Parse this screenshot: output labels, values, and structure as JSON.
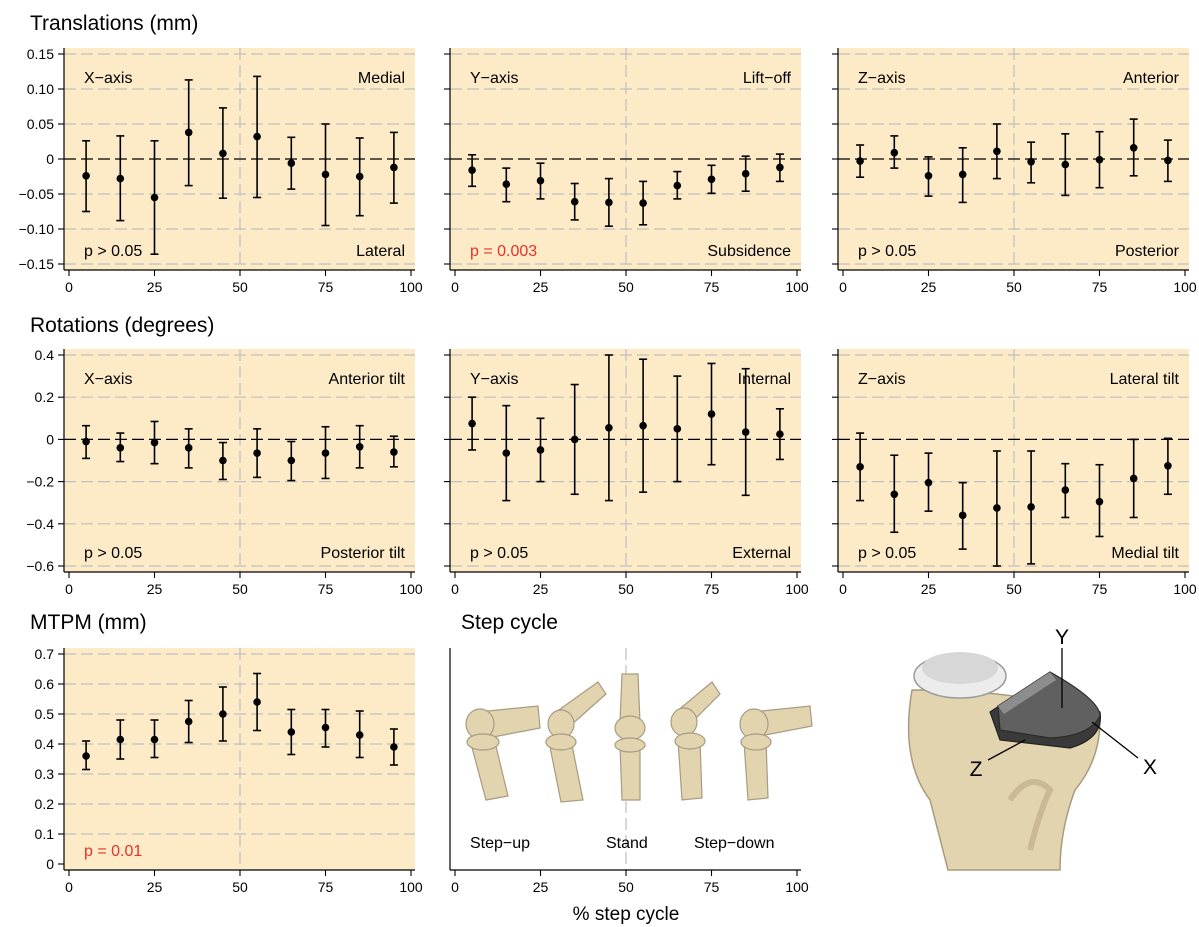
{
  "figure": {
    "section_titles": {
      "translations": "Translations (mm)",
      "rotations": "Rotations (degrees)",
      "mtpm": "MTPM (mm)",
      "step_cycle": "Step cycle"
    },
    "shared_xlabel": "% step cycle",
    "colors": {
      "panel_bg": "#fdebc8",
      "grid": "#bfbfbf",
      "point": "#000000",
      "significant_p": "#e8312a",
      "bone": "#e3d4b0",
      "bone_outline": "#a79c80",
      "implant_dark": "#606060",
      "implant_light": "#ececec"
    },
    "step_cycle_labels": [
      "Step−up",
      "Stand",
      "Step−down"
    ],
    "axis_letters": [
      "Y",
      "Z",
      "X"
    ],
    "icons": [
      "knee-step-up-icon",
      "knee-bent-icon",
      "knee-stand-icon",
      "knee-bent-down-icon",
      "knee-step-down-icon",
      "tibial-implant-axes-icon"
    ]
  },
  "chart_data": [
    {
      "id": "trans_x",
      "type": "scatter",
      "title": "X−axis",
      "xlim": [
        0,
        100
      ],
      "ylim": [
        -0.15,
        0.15
      ],
      "yticks": [
        -0.15,
        -0.1,
        -0.05,
        0,
        0.05,
        0.1,
        0.15
      ],
      "ytick_labels": [
        "−0.15",
        "−0.10",
        "−0.05",
        "0",
        "0.05",
        "0.10",
        "0.15"
      ],
      "xticks": [
        0,
        25,
        50,
        75,
        100
      ],
      "xtick_labels": [
        "0",
        "25",
        "50",
        "75",
        "100"
      ],
      "top_right_label": "Medial",
      "bottom_right_label": "Lateral",
      "p_label": "p > 0.05",
      "p_significant": false,
      "x": [
        5,
        15,
        25,
        35,
        45,
        55,
        65,
        75,
        85,
        95
      ],
      "y": [
        -0.024,
        -0.028,
        -0.055,
        0.038,
        0.008,
        0.032,
        -0.006,
        -0.022,
        -0.025,
        -0.012
      ],
      "lower": [
        -0.075,
        -0.088,
        -0.136,
        -0.038,
        -0.056,
        -0.055,
        -0.043,
        -0.095,
        -0.081,
        -0.063
      ],
      "upper": [
        0.026,
        0.033,
        0.026,
        0.113,
        0.073,
        0.118,
        0.031,
        0.05,
        0.03,
        0.038
      ]
    },
    {
      "id": "trans_y",
      "type": "scatter",
      "title": "Y−axis",
      "xlim": [
        0,
        100
      ],
      "ylim": [
        -0.15,
        0.15
      ],
      "yticks": [
        -0.15,
        -0.1,
        -0.05,
        0,
        0.05,
        0.1,
        0.15
      ],
      "ytick_labels": [],
      "xticks": [
        0,
        25,
        50,
        75,
        100
      ],
      "xtick_labels": [
        "0",
        "25",
        "50",
        "75",
        "100"
      ],
      "top_right_label": "Lift−off",
      "bottom_right_label": "Subsidence",
      "p_label": "p = 0.003",
      "p_significant": true,
      "x": [
        5,
        15,
        25,
        35,
        45,
        55,
        65,
        75,
        85,
        95
      ],
      "y": [
        -0.016,
        -0.036,
        -0.031,
        -0.061,
        -0.062,
        -0.063,
        -0.038,
        -0.029,
        -0.021,
        -0.012
      ],
      "lower": [
        -0.039,
        -0.061,
        -0.057,
        -0.087,
        -0.096,
        -0.094,
        -0.057,
        -0.049,
        -0.046,
        -0.032
      ],
      "upper": [
        0.006,
        -0.013,
        -0.006,
        -0.035,
        -0.028,
        -0.032,
        -0.018,
        -0.009,
        0.004,
        0.007
      ]
    },
    {
      "id": "trans_z",
      "type": "scatter",
      "title": "Z−axis",
      "xlim": [
        0,
        100
      ],
      "ylim": [
        -0.15,
        0.15
      ],
      "yticks": [
        -0.15,
        -0.1,
        -0.05,
        0,
        0.05,
        0.1,
        0.15
      ],
      "ytick_labels": [],
      "xticks": [
        0,
        25,
        50,
        75,
        100
      ],
      "xtick_labels": [
        "0",
        "25",
        "50",
        "75",
        "100"
      ],
      "top_right_label": "Anterior",
      "bottom_right_label": "Posterior",
      "p_label": "p > 0.05",
      "p_significant": false,
      "x": [
        5,
        15,
        25,
        35,
        45,
        55,
        65,
        75,
        85,
        95
      ],
      "y": [
        -0.003,
        0.009,
        -0.024,
        -0.022,
        0.011,
        -0.004,
        -0.008,
        -0.001,
        0.016,
        -0.002
      ],
      "lower": [
        -0.026,
        -0.013,
        -0.053,
        -0.062,
        -0.028,
        -0.034,
        -0.052,
        -0.041,
        -0.024,
        -0.032
      ],
      "upper": [
        0.02,
        0.033,
        0.003,
        0.016,
        0.05,
        0.024,
        0.036,
        0.039,
        0.057,
        0.027
      ]
    },
    {
      "id": "rot_x",
      "type": "scatter",
      "title": "X−axis",
      "xlim": [
        0,
        100
      ],
      "ylim": [
        -0.6,
        0.4
      ],
      "yticks": [
        -0.6,
        -0.4,
        -0.2,
        0,
        0.2,
        0.4
      ],
      "ytick_labels": [
        "−0.6",
        "−0.4",
        "−0.2",
        "0",
        "0.2",
        "0.4"
      ],
      "xticks": [
        0,
        25,
        50,
        75,
        100
      ],
      "xtick_labels": [
        "0",
        "25",
        "50",
        "75",
        "100"
      ],
      "top_right_label": "Anterior tilt",
      "bottom_right_label": "Posterior tilt",
      "p_label": "p > 0.05",
      "p_significant": false,
      "x": [
        5,
        15,
        25,
        35,
        45,
        55,
        65,
        75,
        85,
        95
      ],
      "y": [
        -0.01,
        -0.04,
        -0.015,
        -0.04,
        -0.1,
        -0.065,
        -0.1,
        -0.065,
        -0.035,
        -0.06
      ],
      "lower": [
        -0.09,
        -0.105,
        -0.115,
        -0.135,
        -0.19,
        -0.18,
        -0.195,
        -0.185,
        -0.135,
        -0.13
      ],
      "upper": [
        0.065,
        0.03,
        0.085,
        0.05,
        -0.015,
        0.05,
        -0.01,
        0.06,
        0.065,
        0.015
      ]
    },
    {
      "id": "rot_y",
      "type": "scatter",
      "title": "Y−axis",
      "xlim": [
        0,
        100
      ],
      "ylim": [
        -0.6,
        0.4
      ],
      "yticks": [
        -0.6,
        -0.4,
        -0.2,
        0,
        0.2,
        0.4
      ],
      "ytick_labels": [],
      "xticks": [
        0,
        25,
        50,
        75,
        100
      ],
      "xtick_labels": [
        "0",
        "25",
        "50",
        "75",
        "100"
      ],
      "top_right_label": "Internal",
      "bottom_right_label": "External",
      "p_label": "p > 0.05",
      "p_significant": false,
      "x": [
        5,
        15,
        25,
        35,
        45,
        55,
        65,
        75,
        85,
        95
      ],
      "y": [
        0.075,
        -0.065,
        -0.05,
        0,
        0.055,
        0.065,
        0.05,
        0.12,
        0.035,
        0.025
      ],
      "lower": [
        -0.05,
        -0.29,
        -0.2,
        -0.26,
        -0.29,
        -0.25,
        -0.2,
        -0.12,
        -0.265,
        -0.095
      ],
      "upper": [
        0.2,
        0.16,
        0.1,
        0.26,
        0.4,
        0.38,
        0.3,
        0.36,
        0.335,
        0.145
      ]
    },
    {
      "id": "rot_z",
      "type": "scatter",
      "title": "Z−axis",
      "xlim": [
        0,
        100
      ],
      "ylim": [
        -0.6,
        0.4
      ],
      "yticks": [
        -0.6,
        -0.4,
        -0.2,
        0,
        0.2,
        0.4
      ],
      "ytick_labels": [],
      "xticks": [
        0,
        25,
        50,
        75,
        100
      ],
      "xtick_labels": [
        "0",
        "25",
        "50",
        "75",
        "100"
      ],
      "top_right_label": "Lateral tilt",
      "bottom_right_label": "Medial tilt",
      "p_label": "p > 0.05",
      "p_significant": false,
      "x": [
        5,
        15,
        25,
        35,
        45,
        55,
        65,
        75,
        85,
        95
      ],
      "y": [
        -0.13,
        -0.26,
        -0.205,
        -0.36,
        -0.325,
        -0.32,
        -0.24,
        -0.295,
        -0.185,
        -0.125
      ],
      "lower": [
        -0.29,
        -0.44,
        -0.34,
        -0.52,
        -0.6,
        -0.59,
        -0.37,
        -0.46,
        -0.37,
        -0.26
      ],
      "upper": [
        0.03,
        -0.075,
        -0.065,
        -0.205,
        -0.055,
        -0.055,
        -0.115,
        -0.12,
        0,
        0.005
      ]
    },
    {
      "id": "mtpm",
      "type": "scatter",
      "title": "",
      "xlim": [
        0,
        100
      ],
      "ylim": [
        0,
        0.7
      ],
      "yticks": [
        0,
        0.1,
        0.2,
        0.3,
        0.4,
        0.5,
        0.6,
        0.7
      ],
      "ytick_labels": [
        "0",
        "0.1",
        "0.2",
        "0.3",
        "0.4",
        "0.5",
        "0.6",
        "0.7"
      ],
      "xticks": [
        0,
        25,
        50,
        75,
        100
      ],
      "xtick_labels": [
        "0",
        "25",
        "50",
        "75",
        "100"
      ],
      "top_right_label": "",
      "bottom_right_label": "",
      "p_label": "p = 0.01",
      "p_significant": true,
      "x": [
        5,
        15,
        25,
        35,
        45,
        55,
        65,
        75,
        85,
        95
      ],
      "y": [
        0.36,
        0.415,
        0.415,
        0.475,
        0.5,
        0.54,
        0.44,
        0.455,
        0.43,
        0.39
      ],
      "lower": [
        0.315,
        0.35,
        0.355,
        0.405,
        0.41,
        0.445,
        0.365,
        0.39,
        0.355,
        0.33
      ],
      "upper": [
        0.41,
        0.48,
        0.48,
        0.545,
        0.59,
        0.635,
        0.515,
        0.515,
        0.51,
        0.45
      ]
    },
    {
      "id": "step",
      "type": "other",
      "xlim": [
        0,
        100
      ],
      "xticks": [
        0,
        25,
        50,
        75,
        100
      ],
      "xtick_labels": [
        "0",
        "25",
        "50",
        "75",
        "100"
      ]
    }
  ]
}
